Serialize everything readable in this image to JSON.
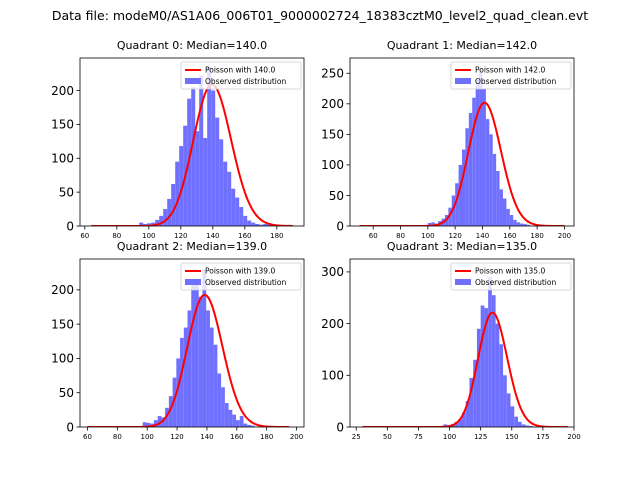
{
  "figure_title": "Data file: modeM0/AS1A06_006T01_9000002724_18383cztM0_level2_quad_clean.evt",
  "colors": {
    "histogram": "#7070ff",
    "poisson": "#ff0000",
    "axes": "#000000"
  },
  "chart_data": [
    {
      "type": "bar",
      "title": "Quadrant 0: Median=140.0",
      "median": 140.0,
      "xlim": [
        57,
        197
      ],
      "ylim": [
        0,
        248
      ],
      "xticks": [
        60,
        80,
        100,
        120,
        140,
        160,
        180
      ],
      "yticks": [
        0,
        50,
        100,
        150,
        200
      ],
      "legend": [
        "Poisson with 140.0",
        "Observed distribution"
      ],
      "legend_position": "top-right",
      "poisson_x_range": [
        64,
        190
      ],
      "hist_start": 94,
      "hist_width": 2.5,
      "hist_values": [
        5,
        3,
        4,
        5,
        9,
        15,
        25,
        40,
        62,
        95,
        118,
        148,
        188,
        205,
        140,
        222,
        130,
        235,
        200,
        160,
        128,
        95,
        80,
        55,
        42,
        28,
        15,
        8,
        5,
        3,
        2,
        3,
        4,
        2
      ]
    },
    {
      "type": "bar",
      "title": "Quadrant 1: Median=142.0",
      "median": 142.0,
      "xlim": [
        43,
        207
      ],
      "ylim": [
        0,
        275
      ],
      "xticks": [
        60,
        80,
        100,
        120,
        140,
        160,
        180,
        200
      ],
      "yticks": [
        0,
        50,
        100,
        150,
        200,
        250
      ],
      "legend": [
        "Poisson with 142.0",
        "Observed distribution"
      ],
      "legend_position": "top-right",
      "poisson_x_range": [
        50,
        200
      ],
      "hist_start": 100,
      "hist_width": 2.5,
      "hist_values": [
        5,
        6,
        4,
        8,
        12,
        18,
        30,
        50,
        70,
        100,
        125,
        160,
        185,
        210,
        240,
        255,
        225,
        175,
        150,
        118,
        90,
        60,
        45,
        28,
        18,
        10,
        6,
        4,
        3,
        2
      ]
    },
    {
      "type": "bar",
      "title": "Quadrant 2: Median=139.0",
      "median": 139.0,
      "xlim": [
        55,
        205
      ],
      "ylim": [
        0,
        245
      ],
      "xticks": [
        60,
        80,
        100,
        120,
        140,
        160,
        180,
        200
      ],
      "yticks": [
        0,
        50,
        100,
        150,
        200
      ],
      "legend": [
        "Poisson with 139.0",
        "Observed distribution"
      ],
      "legend_position": "top-right",
      "poisson_x_range": [
        60,
        195
      ],
      "hist_start": 97,
      "hist_width": 2.5,
      "hist_values": [
        7,
        6,
        5,
        10,
        16,
        14,
        28,
        45,
        72,
        100,
        130,
        145,
        170,
        210,
        215,
        190,
        230,
        170,
        145,
        120,
        78,
        58,
        35,
        25,
        18,
        10,
        16,
        5,
        3,
        2
      ]
    },
    {
      "type": "bar",
      "title": "Quadrant 3: Median=135.0",
      "median": 135.0,
      "xlim": [
        20,
        200
      ],
      "ylim": [
        0,
        325
      ],
      "xticks": [
        25,
        50,
        75,
        100,
        125,
        150,
        175,
        200
      ],
      "yticks": [
        0,
        100,
        200,
        300
      ],
      "legend": [
        "Poisson with 135.0",
        "Observed distribution"
      ],
      "legend_position": "top-right",
      "poisson_x_range": [
        30,
        195
      ],
      "hist_start": 95,
      "hist_width": 3,
      "hist_values": [
        5,
        4,
        6,
        10,
        15,
        28,
        50,
        95,
        130,
        190,
        235,
        230,
        290,
        255,
        200,
        160,
        100,
        65,
        40,
        20,
        10,
        5,
        3,
        2
      ]
    }
  ]
}
